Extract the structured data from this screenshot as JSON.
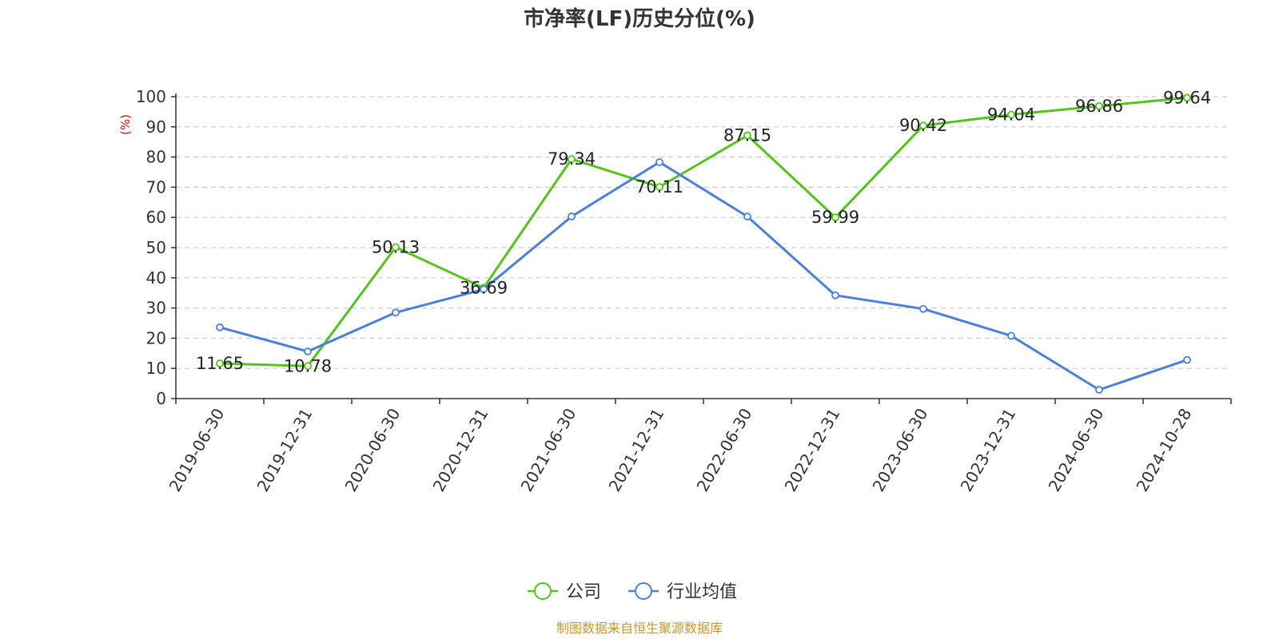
{
  "chart_data": {
    "type": "line",
    "title": "市净率(LF)历史分位(%)",
    "ylabel": "(%)",
    "ylabel_color": "#ff0000",
    "categories": [
      "2019-06-30",
      "2019-12-31",
      "2020-06-30",
      "2020-12-31",
      "2021-06-30",
      "2021-12-31",
      "2022-06-30",
      "2022-12-31",
      "2023-06-30",
      "2023-12-31",
      "2024-06-30",
      "2024-10-28"
    ],
    "ylim": [
      0,
      100
    ],
    "yticks": [
      0,
      10,
      20,
      30,
      40,
      50,
      60,
      70,
      80,
      90,
      100
    ],
    "grid": true,
    "legend_position": "bottom-center",
    "series": [
      {
        "name": "公司",
        "color": "#52c41a",
        "show_labels": true,
        "values": [
          11.65,
          10.78,
          50.13,
          36.69,
          79.34,
          70.11,
          87.15,
          59.99,
          90.42,
          94.04,
          96.86,
          99.64
        ]
      },
      {
        "name": "行业均值",
        "color": "#4a7fdc",
        "show_labels": false,
        "values": [
          23.6,
          15.6,
          28.5,
          36.2,
          60.3,
          78.3,
          60.3,
          34.2,
          29.7,
          20.8,
          2.9,
          12.8
        ]
      }
    ]
  },
  "footer": {
    "source_text": "制图数据来自恒生聚源数据库",
    "source_color": "#c8962c"
  }
}
